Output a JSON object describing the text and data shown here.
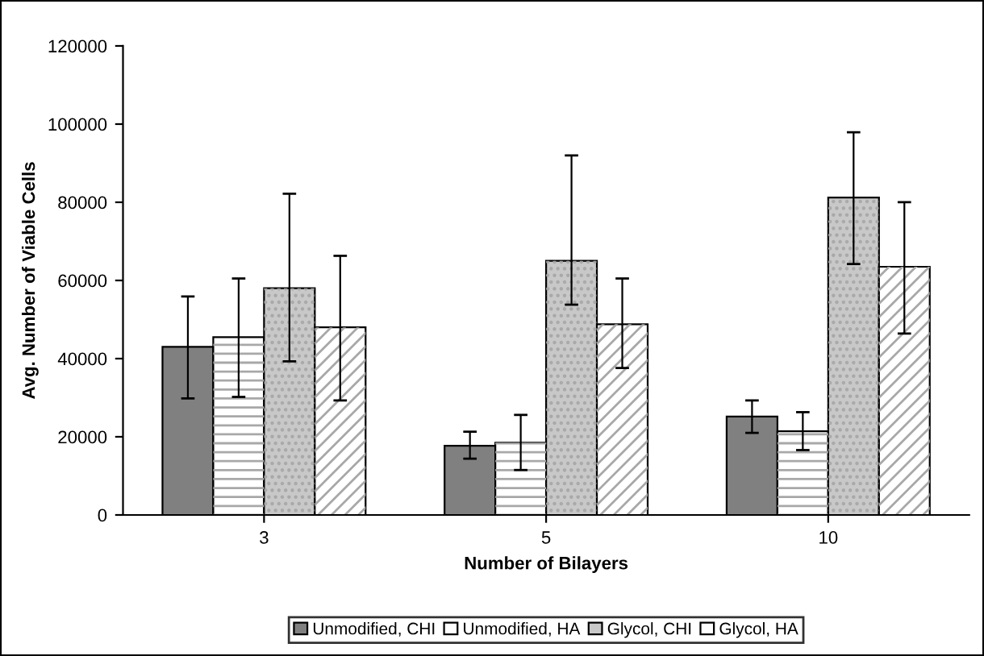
{
  "chart_data": {
    "type": "bar",
    "xlabel": "Number of Bilayers",
    "ylabel": "Avg. Number of Viable Cells",
    "categories": [
      "3",
      "5",
      "10"
    ],
    "series": [
      {
        "name": "Unmodified, CHI",
        "color": "#808080",
        "values": [
          43000,
          17700,
          25200
        ],
        "errors": [
          [
            29800,
            55900
          ],
          [
            14400,
            21300
          ],
          [
            21000,
            29300
          ]
        ]
      },
      {
        "name": "Unmodified, HA",
        "color": "#ffffff",
        "values": [
          45500,
          18500,
          21400
        ],
        "errors": [
          [
            30200,
            60500
          ],
          [
            11500,
            25600
          ],
          [
            16600,
            26300
          ]
        ]
      },
      {
        "name": "Glycol, CHI",
        "color": "#c8c8c8",
        "values": [
          58000,
          65000,
          81200
        ],
        "errors": [
          [
            39300,
            82200
          ],
          [
            53800,
            92000
          ],
          [
            64200,
            97900
          ]
        ]
      },
      {
        "name": "Glycol, HA",
        "color": "#ffffff",
        "values": [
          48000,
          48800,
          63500
        ],
        "errors": [
          [
            29300,
            66300
          ],
          [
            37600,
            60500
          ],
          [
            46400,
            80000
          ]
        ]
      }
    ],
    "ylim": [
      0,
      120000
    ],
    "yticks": [
      0,
      20000,
      40000,
      60000,
      80000,
      100000,
      120000
    ],
    "grid": false,
    "legend": "bottom"
  }
}
